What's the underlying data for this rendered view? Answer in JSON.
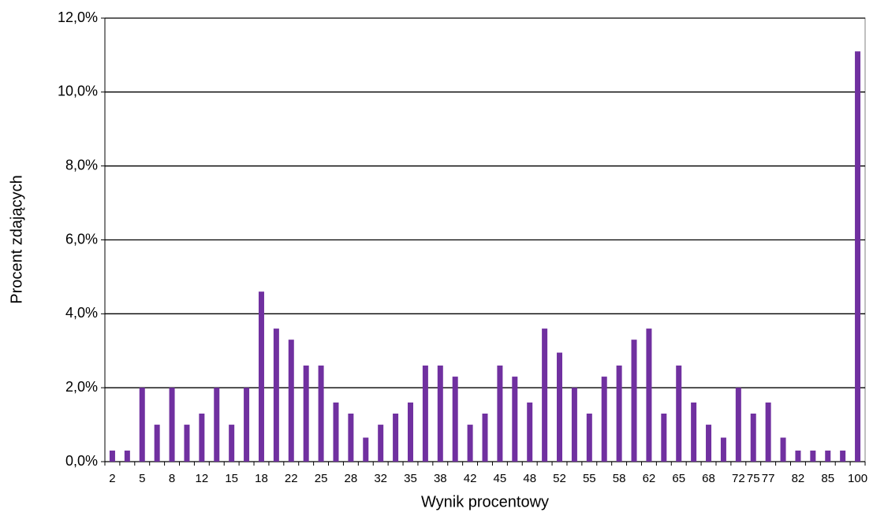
{
  "chart_data": {
    "type": "bar",
    "x_label": "Wynik procentowy",
    "y_label": "Procent zdających",
    "categories": [
      "2",
      null,
      "5",
      null,
      "8",
      null,
      "12",
      null,
      "15",
      null,
      "18",
      null,
      "22",
      null,
      "25",
      null,
      "28",
      null,
      "32",
      null,
      "35",
      null,
      "38",
      null,
      "42",
      null,
      "45",
      null,
      "48",
      null,
      "52",
      null,
      "55",
      null,
      "58",
      null,
      "62",
      null,
      "65",
      null,
      "68",
      null,
      "72",
      "75",
      "77",
      null,
      "82",
      null,
      "85",
      null,
      "100"
    ],
    "values": [
      0.3,
      0.3,
      2.0,
      1.0,
      2.0,
      1.0,
      1.3,
      2.0,
      1.0,
      2.0,
      4.6,
      3.6,
      3.3,
      2.6,
      2.6,
      1.6,
      1.3,
      0.65,
      1.0,
      1.3,
      1.6,
      2.6,
      2.6,
      2.3,
      1.0,
      1.3,
      2.6,
      2.3,
      1.6,
      3.6,
      2.95,
      2.0,
      1.3,
      2.3,
      2.6,
      3.3,
      3.6,
      1.3,
      2.6,
      1.6,
      1.0,
      0.65,
      2.0,
      1.3,
      1.6,
      0.65,
      0.3,
      0.3,
      0.3,
      0.3,
      11.1
    ],
    "color": "#7030a0",
    "ylim": [
      0,
      12
    ],
    "yticks": [
      {
        "value": 0,
        "label": "0,0%"
      },
      {
        "value": 2,
        "label": "2,0%"
      },
      {
        "value": 4,
        "label": "4,0%"
      },
      {
        "value": 6,
        "label": "6,0%"
      },
      {
        "value": 8,
        "label": "8,0%"
      },
      {
        "value": 10,
        "label": "10,0%"
      },
      {
        "value": 12,
        "label": "12,0%"
      }
    ],
    "grid": true
  }
}
